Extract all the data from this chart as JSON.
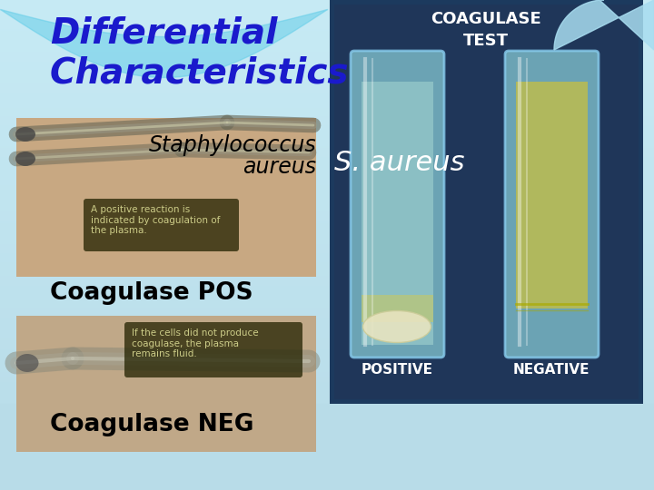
{
  "background_color": "#b8dce8",
  "title_line1": "Differential",
  "title_line2": "Characteristics",
  "title_color": "#1a1acc",
  "title_fontsize": 28,
  "title_style": "italic",
  "title_weight": "bold",
  "s_aureus_text": "S. aureus",
  "s_aureus_color": "white",
  "s_aureus_fontsize": 22,
  "s_aureus_style": "italic",
  "staph_text_line1": "Staphylococcus",
  "staph_text_line2": "aureus",
  "staph_color": "black",
  "staph_fontsize": 17,
  "coag_pos_text": "Coagulase POS",
  "coag_neg_text": "Coagulase NEG",
  "coag_fontsize": 19,
  "coag_weight": "bold",
  "pos_note": "A positive reaction is\nindicated by coagulation of\nthe plasma.",
  "neg_note": "If the cells did not produce\ncoagulase, the plasma\nremains fluid.",
  "note_fontsize": 7.5,
  "note_color": "#cccc88",
  "top_photo_color": "#c8a882",
  "bottom_photo_color": "#b0a090",
  "right_photo_color": "#1a3060",
  "coagulase_test_title": "COAGULASE\nTEST",
  "positive_label": "POSITIVE",
  "negative_label": "NEGATIVE",
  "bg_grad_top": "#7dd8ee",
  "bg_grad_mid": "#a8d8e8"
}
